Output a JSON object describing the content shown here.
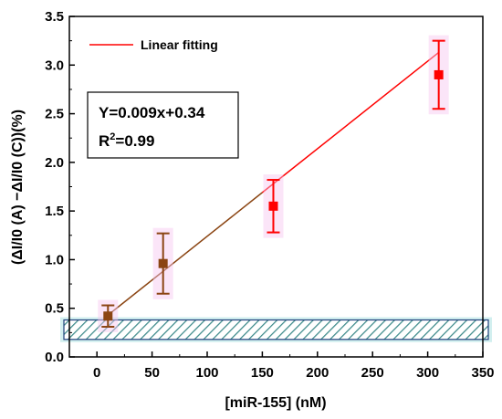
{
  "chart_data": {
    "type": "scatter",
    "xlabel": "[miR-155] (nM)",
    "ylabel": "(ΔI/I0 (A) −ΔI/I0 (C))(%)",
    "xlim": [
      -25,
      350
    ],
    "ylim": [
      0,
      3.5
    ],
    "x_ticks": [
      0,
      50,
      100,
      150,
      200,
      250,
      300,
      350
    ],
    "y_ticks": [
      0.0,
      0.5,
      1.0,
      1.5,
      2.0,
      2.5,
      3.0,
      3.5
    ],
    "x_tick_labels": [
      "0",
      "50",
      "100",
      "150",
      "200",
      "250",
      "300",
      "350"
    ],
    "y_tick_labels": [
      "0.0",
      "0.5",
      "1.0",
      "1.5",
      "2.0",
      "2.5",
      "3.0",
      "3.5"
    ],
    "points": [
      {
        "x": 10,
        "y": 0.42,
        "err": 0.11,
        "color": "#8B4513"
      },
      {
        "x": 60,
        "y": 0.96,
        "err": 0.31,
        "color": "#8B4513"
      },
      {
        "x": 160,
        "y": 1.55,
        "err": 0.27,
        "color": "#FF0000"
      },
      {
        "x": 310,
        "y": 2.9,
        "err": 0.35,
        "color": "#FF0000"
      }
    ],
    "fit": {
      "name": "Linear fitting",
      "slope": 0.009,
      "intercept": 0.34,
      "x_range": [
        10,
        310
      ]
    },
    "band": {
      "y_min": 0.18,
      "y_max": 0.38,
      "color": "#7FD1D1"
    },
    "equation": {
      "line1": "Y=0.009x+0.34",
      "line2_prefix": "R",
      "line2_sup": "2",
      "line2_suffix": "=0.99"
    },
    "legend_position": "top-left",
    "grid": false
  }
}
